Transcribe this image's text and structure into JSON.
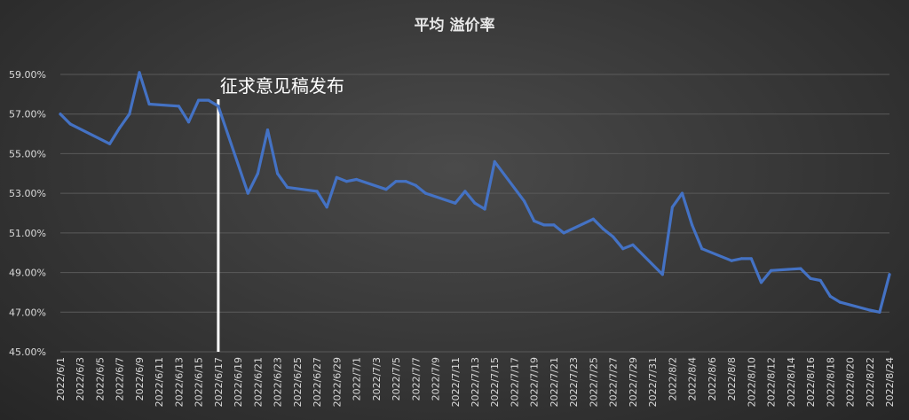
{
  "chart_data": {
    "type": "line",
    "title": "平均 溢价率",
    "xlabel": "",
    "ylabel": "",
    "ylim": [
      45,
      59
    ],
    "y_ticks": [
      "45.00%",
      "47.00%",
      "49.00%",
      "51.00%",
      "53.00%",
      "55.00%",
      "57.00%",
      "59.00%"
    ],
    "x_tick_labels": [
      "2022/6/1",
      "2022/6/3",
      "2022/6/5",
      "2022/6/7",
      "2022/6/9",
      "2022/6/11",
      "2022/6/13",
      "2022/6/15",
      "2022/6/17",
      "2022/6/19",
      "2022/6/21",
      "2022/6/23",
      "2022/6/25",
      "2022/6/27",
      "2022/6/29",
      "2022/7/1",
      "2022/7/3",
      "2022/7/5",
      "2022/7/7",
      "2022/7/9",
      "2022/7/11",
      "2022/7/13",
      "2022/7/15",
      "2022/7/17",
      "2022/7/19",
      "2022/7/21",
      "2022/7/23",
      "2022/7/25",
      "2022/7/27",
      "2022/7/29",
      "2022/7/31",
      "2022/8/2",
      "2022/8/4",
      "2022/8/6",
      "2022/8/8",
      "2022/8/10",
      "2022/8/12",
      "2022/8/14",
      "2022/8/16",
      "2022/8/18",
      "2022/8/20",
      "2022/8/22",
      "2022/8/24"
    ],
    "grid": true,
    "line_color": "#4472C4",
    "annotation": {
      "text": "征求意见稿发布",
      "date": "2022/6/17"
    },
    "series": [
      {
        "points": [
          {
            "x": "2022/6/1",
            "y": 57.0
          },
          {
            "x": "2022/6/2",
            "y": 56.5
          },
          {
            "x": "2022/6/6",
            "y": 55.5
          },
          {
            "x": "2022/6/7",
            "y": 56.3
          },
          {
            "x": "2022/6/8",
            "y": 57.0
          },
          {
            "x": "2022/6/9",
            "y": 59.1
          },
          {
            "x": "2022/6/10",
            "y": 57.5
          },
          {
            "x": "2022/6/13",
            "y": 57.4
          },
          {
            "x": "2022/6/14",
            "y": 56.6
          },
          {
            "x": "2022/6/15",
            "y": 57.7
          },
          {
            "x": "2022/6/16",
            "y": 57.7
          },
          {
            "x": "2022/6/17",
            "y": 57.4
          },
          {
            "x": "2022/6/20",
            "y": 53.0
          },
          {
            "x": "2022/6/21",
            "y": 54.0
          },
          {
            "x": "2022/6/22",
            "y": 56.2
          },
          {
            "x": "2022/6/23",
            "y": 54.0
          },
          {
            "x": "2022/6/24",
            "y": 53.3
          },
          {
            "x": "2022/6/27",
            "y": 53.1
          },
          {
            "x": "2022/6/28",
            "y": 52.3
          },
          {
            "x": "2022/6/29",
            "y": 53.8
          },
          {
            "x": "2022/6/30",
            "y": 53.6
          },
          {
            "x": "2022/7/1",
            "y": 53.7
          },
          {
            "x": "2022/7/4",
            "y": 53.2
          },
          {
            "x": "2022/7/5",
            "y": 53.6
          },
          {
            "x": "2022/7/6",
            "y": 53.6
          },
          {
            "x": "2022/7/7",
            "y": 53.4
          },
          {
            "x": "2022/7/8",
            "y": 53.0
          },
          {
            "x": "2022/7/11",
            "y": 52.5
          },
          {
            "x": "2022/7/12",
            "y": 53.1
          },
          {
            "x": "2022/7/13",
            "y": 52.5
          },
          {
            "x": "2022/7/14",
            "y": 52.2
          },
          {
            "x": "2022/7/15",
            "y": 54.6
          },
          {
            "x": "2022/7/18",
            "y": 52.6
          },
          {
            "x": "2022/7/19",
            "y": 51.6
          },
          {
            "x": "2022/7/20",
            "y": 51.4
          },
          {
            "x": "2022/7/21",
            "y": 51.4
          },
          {
            "x": "2022/7/22",
            "y": 51.0
          },
          {
            "x": "2022/7/25",
            "y": 51.7
          },
          {
            "x": "2022/7/26",
            "y": 51.2
          },
          {
            "x": "2022/7/27",
            "y": 50.8
          },
          {
            "x": "2022/7/28",
            "y": 50.2
          },
          {
            "x": "2022/7/29",
            "y": 50.4
          },
          {
            "x": "2022/8/1",
            "y": 48.9
          },
          {
            "x": "2022/8/2",
            "y": 52.3
          },
          {
            "x": "2022/8/3",
            "y": 53.0
          },
          {
            "x": "2022/8/4",
            "y": 51.4
          },
          {
            "x": "2022/8/5",
            "y": 50.2
          },
          {
            "x": "2022/8/8",
            "y": 49.6
          },
          {
            "x": "2022/8/9",
            "y": 49.7
          },
          {
            "x": "2022/8/10",
            "y": 49.7
          },
          {
            "x": "2022/8/11",
            "y": 48.5
          },
          {
            "x": "2022/8/12",
            "y": 49.1
          },
          {
            "x": "2022/8/15",
            "y": 49.2
          },
          {
            "x": "2022/8/16",
            "y": 48.7
          },
          {
            "x": "2022/8/17",
            "y": 48.6
          },
          {
            "x": "2022/8/18",
            "y": 47.8
          },
          {
            "x": "2022/8/19",
            "y": 47.5
          },
          {
            "x": "2022/8/22",
            "y": 47.1
          },
          {
            "x": "2022/8/23",
            "y": 47.0
          },
          {
            "x": "2022/8/24",
            "y": 48.9
          }
        ]
      }
    ]
  }
}
